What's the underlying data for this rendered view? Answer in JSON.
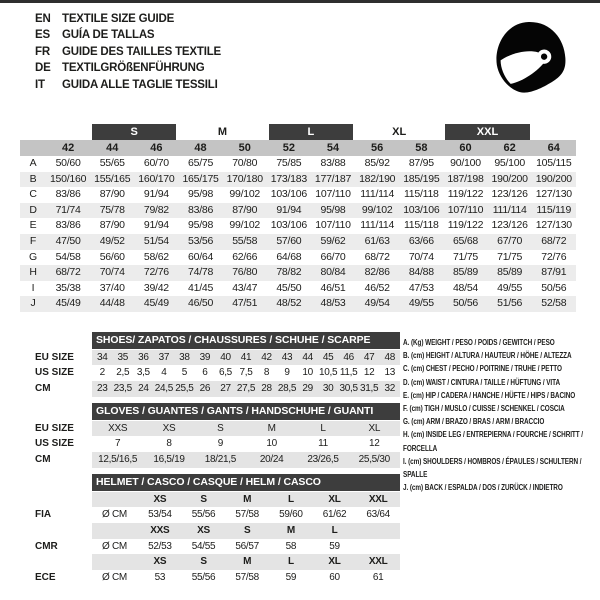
{
  "languages": [
    {
      "code": "EN",
      "text": "TEXTILE SIZE GUIDE"
    },
    {
      "code": "ES",
      "text": "GUÍA DE TALLAS"
    },
    {
      "code": "FR",
      "text": "GUIDE DES TAILLES TEXTILE"
    },
    {
      "code": "DE",
      "text": "TEXTILGRÖßENFÜHRUNG"
    },
    {
      "code": "IT",
      "text": "GUIDA ALLE TAGLIE TESSILI"
    }
  ],
  "size_table": {
    "bands": [
      {
        "label": "S",
        "dark": true
      },
      {
        "label": "M",
        "dark": false
      },
      {
        "label": "L",
        "dark": true
      },
      {
        "label": "XL",
        "dark": false
      },
      {
        "label": "XXL",
        "dark": true
      }
    ],
    "columns": [
      "42",
      "44",
      "46",
      "48",
      "50",
      "52",
      "54",
      "56",
      "58",
      "60",
      "62",
      "64"
    ],
    "rows": [
      {
        "letter": "A",
        "values": [
          "50/60",
          "55/65",
          "60/70",
          "65/75",
          "70/80",
          "75/85",
          "83/88",
          "85/92",
          "87/95",
          "90/100",
          "95/100",
          "105/115"
        ]
      },
      {
        "letter": "B",
        "values": [
          "150/160",
          "155/165",
          "160/170",
          "165/175",
          "170/180",
          "173/183",
          "177/187",
          "182/190",
          "185/195",
          "187/198",
          "190/200",
          "190/200"
        ]
      },
      {
        "letter": "C",
        "values": [
          "83/86",
          "87/90",
          "91/94",
          "95/98",
          "99/102",
          "103/106",
          "107/110",
          "111/114",
          "115/118",
          "119/122",
          "123/126",
          "127/130"
        ]
      },
      {
        "letter": "D",
        "values": [
          "71/74",
          "75/78",
          "79/82",
          "83/86",
          "87/90",
          "91/94",
          "95/98",
          "99/102",
          "103/106",
          "107/110",
          "111/114",
          "115/119"
        ]
      },
      {
        "letter": "E",
        "values": [
          "83/86",
          "87/90",
          "91/94",
          "95/98",
          "99/102",
          "103/106",
          "107/110",
          "111/114",
          "115/118",
          "119/122",
          "123/126",
          "127/130"
        ]
      },
      {
        "letter": "F",
        "values": [
          "47/50",
          "49/52",
          "51/54",
          "53/56",
          "55/58",
          "57/60",
          "59/62",
          "61/63",
          "63/66",
          "65/68",
          "67/70",
          "68/72"
        ]
      },
      {
        "letter": "G",
        "values": [
          "54/58",
          "56/60",
          "58/62",
          "60/64",
          "62/66",
          "64/68",
          "66/70",
          "68/72",
          "70/74",
          "71/75",
          "71/75",
          "72/76"
        ]
      },
      {
        "letter": "H",
        "values": [
          "68/72",
          "70/74",
          "72/76",
          "74/78",
          "76/80",
          "78/82",
          "80/84",
          "82/86",
          "84/88",
          "85/89",
          "85/89",
          "87/91"
        ]
      },
      {
        "letter": "I",
        "values": [
          "35/38",
          "37/40",
          "39/42",
          "41/45",
          "43/47",
          "45/50",
          "46/51",
          "46/52",
          "47/53",
          "48/54",
          "49/55",
          "50/56"
        ]
      },
      {
        "letter": "J",
        "values": [
          "45/49",
          "44/48",
          "45/49",
          "46/50",
          "47/51",
          "48/52",
          "48/53",
          "49/54",
          "49/55",
          "50/56",
          "51/56",
          "52/58"
        ]
      }
    ]
  },
  "shoes": {
    "title": "SHOES/ ZAPATOS / CHAUSSURES / SCHUHE / SCARPE",
    "rows": [
      {
        "label": "EU SIZE",
        "shaded": true,
        "values": [
          "34",
          "35",
          "36",
          "37",
          "38",
          "39",
          "40",
          "41",
          "42",
          "43",
          "44",
          "45",
          "46",
          "47",
          "48"
        ]
      },
      {
        "label": "US SIZE",
        "shaded": false,
        "values": [
          "2",
          "2,5",
          "3,5",
          "4",
          "5",
          "6",
          "6,5",
          "7,5",
          "8",
          "9",
          "10",
          "10,5",
          "11,5",
          "12",
          "13"
        ]
      },
      {
        "label": "CM",
        "shaded": true,
        "values": [
          "23",
          "23,5",
          "24",
          "24,5",
          "25,5",
          "26",
          "27",
          "27,5",
          "28",
          "28,5",
          "29",
          "30",
          "30,5",
          "31,5",
          "32"
        ]
      }
    ]
  },
  "gloves": {
    "title": "GLOVES / GUANTES / GANTS / HANDSCHUHE / GUANTI",
    "rows": [
      {
        "label": "EU SIZE",
        "shaded": true,
        "values": [
          "XXS",
          "XS",
          "S",
          "M",
          "L",
          "XL"
        ]
      },
      {
        "label": "US SIZE",
        "shaded": false,
        "values": [
          "7",
          "8",
          "9",
          "10",
          "11",
          "12"
        ]
      },
      {
        "label": "CM",
        "shaded": true,
        "values": [
          "12,5/16,5",
          "16,5/19",
          "18/21,5",
          "20/24",
          "23/26,5",
          "25,5/30"
        ]
      }
    ]
  },
  "helmet": {
    "title": "HELMET / CASCO / CASQUE / HELM / CASCO",
    "groups": [
      {
        "label": "FIA",
        "unit": "Ø CM",
        "sizes": [
          "XS",
          "S",
          "M",
          "L",
          "XL",
          "XXL"
        ],
        "values": [
          "53/54",
          "55/56",
          "57/58",
          "59/60",
          "61/62",
          "63/64"
        ]
      },
      {
        "label": "CMR",
        "unit": "Ø CM",
        "sizes": [
          "XXS",
          "XS",
          "S",
          "M",
          "L",
          ""
        ],
        "values": [
          "52/53",
          "54/55",
          "56/57",
          "58",
          "59",
          ""
        ]
      },
      {
        "label": "ECE",
        "unit": "Ø CM",
        "sizes": [
          "XS",
          "S",
          "M",
          "L",
          "XL",
          "XXL"
        ],
        "values": [
          "53",
          "55/56",
          "57/58",
          "59",
          "60",
          "61"
        ]
      }
    ]
  },
  "legend": {
    "items": [
      "A. (Kg) WEIGHT / PESO / POIDS / GEWITCH / PESO",
      "B. (cm) HEIGHT / ALTURA / HAUTEUR / HÖHE / ALTEZZA",
      "C. (cm) CHEST / PECHO / POITRINE / TRUHE / PETTO",
      "D. (cm) WAIST / CINTURA / TAILLE / HÜFTUNG / VITA",
      "E. (cm) HIP / CADERA / HANCHE / HÜFTE / HIPS / BACINO",
      "F. (cm) TIGH / MUSLO / CUISSE / SCHENKEL / COSCIA",
      "G. (cm) ARM / BRAZO / BRAS / ARM / BRACCIO",
      "H. (cm) INSIDE LEG / ENTREPIERNA / FOURCHE / SCHRITT / FORCELLA",
      "I. (cm) SHOULDERS / HOMBROS / ÉPAULES / SCHULTERN / SPALLE",
      "J. (cm) BACK / ESPALDA / DOS / ZURÜCK / INDIETRO"
    ]
  },
  "icons": {
    "helmet": "racing-helmet-icon"
  },
  "colors": {
    "dark_bar": "#3d3d3d",
    "column_header_gray": "#c4c4c4",
    "alt_row_gray": "#ececec",
    "sub_row_gray": "#e4e4e4",
    "text": "#1d1d1b",
    "top_rule": "#2f2f2f"
  }
}
